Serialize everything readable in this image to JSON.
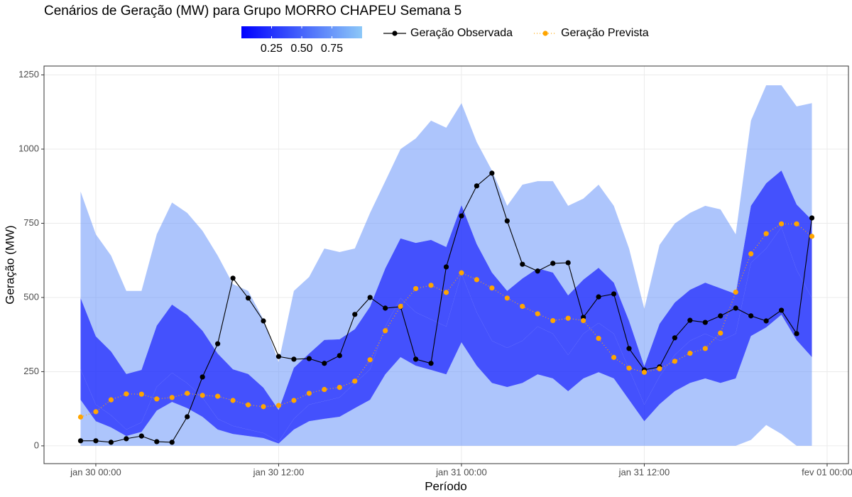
{
  "chart_data": {
    "type": "line",
    "title": "Cenários de Geração (MW) para Grupo MORRO CHAPEU Semana 5",
    "xlabel": "Período",
    "ylabel": "Geração (MW)",
    "x": [
      "jan 29 23:00",
      "jan 30 00:00",
      "jan 30 01:00",
      "jan 30 02:00",
      "jan 30 03:00",
      "jan 30 04:00",
      "jan 30 05:00",
      "jan 30 06:00",
      "jan 30 07:00",
      "jan 30 08:00",
      "jan 30 09:00",
      "jan 30 10:00",
      "jan 30 11:00",
      "jan 30 12:00",
      "jan 30 13:00",
      "jan 30 14:00",
      "jan 30 15:00",
      "jan 30 16:00",
      "jan 30 17:00",
      "jan 30 18:00",
      "jan 30 19:00",
      "jan 30 20:00",
      "jan 30 21:00",
      "jan 30 22:00",
      "jan 30 23:00",
      "jan 31 00:00",
      "jan 31 01:00",
      "jan 31 02:00",
      "jan 31 03:00",
      "jan 31 04:00",
      "jan 31 05:00",
      "jan 31 06:00",
      "jan 31 07:00",
      "jan 31 08:00",
      "jan 31 09:00",
      "jan 31 10:00",
      "jan 31 11:00",
      "jan 31 12:00",
      "jan 31 13:00",
      "jan 31 14:00",
      "jan 31 15:00",
      "jan 31 16:00",
      "jan 31 17:00",
      "jan 31 18:00",
      "jan 31 19:00",
      "jan 31 20:00",
      "jan 31 21:00",
      "jan 31 22:00",
      "jan 31 23:00"
    ],
    "xlim": [
      "jan 29 20:36",
      "fev 01 01:24"
    ],
    "xticks": [
      "jan 30 00:00",
      "jan 30 12:00",
      "jan 31 00:00",
      "jan 31 12:00",
      "fev 01 00:00"
    ],
    "ylim": [
      -60,
      1280
    ],
    "yticks": [
      0,
      250,
      500,
      750,
      1000,
      1250
    ],
    "grid": true,
    "series": [
      {
        "name": "Geração Observada",
        "color": "#000000",
        "line_style": "solid",
        "values": [
          17,
          17,
          12,
          24,
          33,
          14,
          12,
          98,
          232,
          344,
          565,
          498,
          421,
          301,
          292,
          294,
          278,
          304,
          443,
          500,
          464,
          469,
          292,
          278,
          603,
          775,
          876,
          919,
          758,
          612,
          589,
          615,
          617,
          433,
          502,
          512,
          328,
          256,
          266,
          364,
          423,
          416,
          438,
          464,
          438,
          421,
          457,
          378,
          768
        ]
      },
      {
        "name": "Geração Prevista",
        "color": "#FFA500",
        "line_style": "dotted",
        "values": [
          97,
          115,
          155,
          175,
          174,
          158,
          163,
          177,
          170,
          167,
          153,
          138,
          132,
          136,
          153,
          177,
          190,
          197,
          218,
          290,
          388,
          470,
          530,
          541,
          517,
          583,
          560,
          532,
          498,
          470,
          445,
          422,
          430,
          422,
          362,
          298,
          262,
          248,
          260,
          285,
          312,
          328,
          380,
          518,
          647,
          715,
          748,
          748,
          706
        ]
      }
    ],
    "fan": {
      "colorbar": {
        "colors": [
          "#0000FF",
          "#8CC8F8"
        ],
        "lim": [
          0,
          1
        ],
        "ticks": [
          {
            "value": 0.25,
            "label": "0.25"
          },
          {
            "value": 0.5,
            "label": "0.50"
          },
          {
            "value": 0.75,
            "label": "0.75"
          }
        ]
      },
      "quantiles": [
        {
          "level": 0,
          "values": [
            0,
            0,
            0,
            0,
            0,
            0,
            0,
            0,
            0,
            0,
            0,
            0,
            0,
            0,
            0,
            0,
            0,
            0,
            0,
            0,
            0,
            0,
            0,
            0,
            0,
            0,
            0,
            0,
            0,
            0,
            0,
            0,
            0,
            0,
            0,
            0,
            0,
            0,
            0,
            0,
            0,
            0,
            0,
            0,
            20,
            70,
            40,
            0,
            0
          ]
        },
        {
          "level": 0.25,
          "values": [
            155,
            83,
            62,
            33,
            47,
            119,
            148,
            127,
            98,
            55,
            40,
            33,
            26,
            8,
            55,
            83,
            91,
            98,
            127,
            155,
            241,
            299,
            270,
            256,
            241,
            349,
            270,
            212,
            198,
            212,
            241,
            227,
            184,
            227,
            248,
            227,
            155,
            83,
            140,
            184,
            212,
            227,
            212,
            227,
            370,
            399,
            442,
            356,
            299
          ]
        },
        {
          "level": 0.5,
          "values": [
            258,
            139,
            103,
            55,
            79,
            199,
            246,
            211,
            163,
            91,
            67,
            55,
            43,
            14,
            91,
            139,
            151,
            163,
            211,
            258,
            402,
            498,
            450,
            426,
            402,
            581,
            450,
            354,
            330,
            354,
            402,
            378,
            306,
            378,
            414,
            378,
            258,
            139,
            234,
            306,
            354,
            378,
            354,
            378,
            617,
            665,
            737,
            593,
            498
          ]
        },
        {
          "level": 0.75,
          "values": [
            498,
            369,
            318,
            242,
            256,
            405,
            476,
            441,
            388,
            311,
            258,
            242,
            196,
            121,
            263,
            311,
            357,
            359,
            393,
            469,
            598,
            699,
            684,
            694,
            670,
            811,
            680,
            584,
            522,
            564,
            598,
            584,
            507,
            560,
            600,
            550,
            421,
            268,
            411,
            483,
            526,
            550,
            531,
            512,
            809,
            885,
            928,
            813,
            761
          ]
        },
        {
          "level": 1,
          "values": [
            857,
            713,
            641,
            522,
            522,
            713,
            820,
            785,
            725,
            641,
            545,
            522,
            426,
            282,
            522,
            569,
            665,
            653,
            665,
            785,
            892,
            1000,
            1036,
            1096,
            1072,
            1155,
            1024,
            928,
            809,
            880,
            892,
            892,
            809,
            833,
            880,
            809,
            665,
            462,
            677,
            749,
            785,
            809,
            797,
            713,
            1096,
            1215,
            1215,
            1144,
            1155
          ]
        }
      ]
    }
  }
}
